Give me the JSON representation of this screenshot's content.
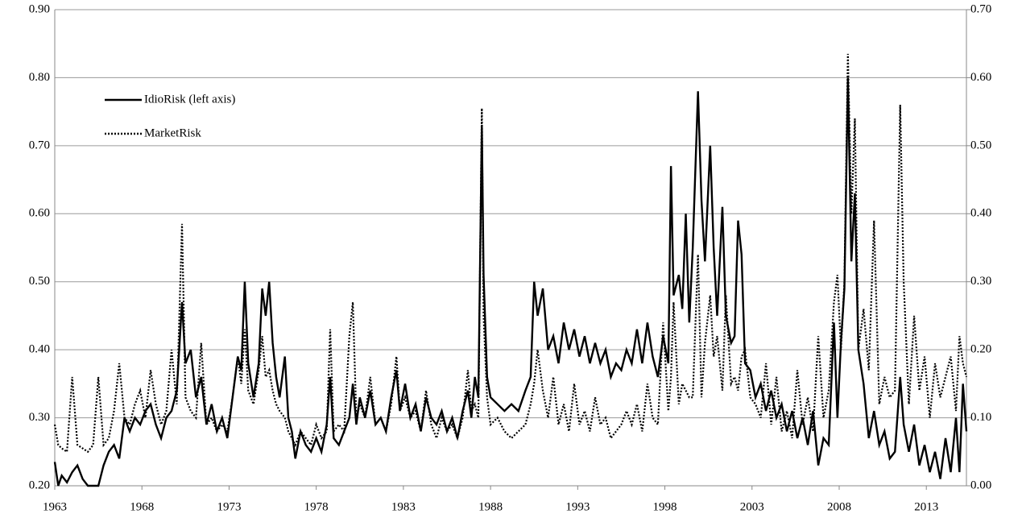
{
  "chart_data": {
    "type": "line",
    "x": [
      1963.0,
      1963.2,
      1963.4,
      1963.7,
      1964.0,
      1964.3,
      1964.6,
      1964.9,
      1965.2,
      1965.5,
      1965.8,
      1966.1,
      1966.4,
      1966.7,
      1967.0,
      1967.3,
      1967.6,
      1967.9,
      1968.2,
      1968.5,
      1968.8,
      1969.1,
      1969.4,
      1969.7,
      1970.0,
      1970.3,
      1970.5,
      1970.8,
      1971.1,
      1971.4,
      1971.7,
      1972.0,
      1972.3,
      1972.6,
      1972.9,
      1973.2,
      1973.5,
      1973.7,
      1973.9,
      1974.1,
      1974.4,
      1974.7,
      1974.9,
      1975.1,
      1975.3,
      1975.5,
      1975.7,
      1975.9,
      1976.2,
      1976.4,
      1976.6,
      1976.8,
      1977.1,
      1977.4,
      1977.7,
      1978.0,
      1978.3,
      1978.6,
      1978.8,
      1979.0,
      1979.3,
      1979.6,
      1979.9,
      1980.1,
      1980.3,
      1980.5,
      1980.8,
      1981.1,
      1981.4,
      1981.7,
      1982.0,
      1982.3,
      1982.6,
      1982.8,
      1983.1,
      1983.4,
      1983.7,
      1984.0,
      1984.3,
      1984.6,
      1984.9,
      1985.2,
      1985.5,
      1985.8,
      1986.1,
      1986.4,
      1986.7,
      1986.9,
      1987.1,
      1987.3,
      1987.5,
      1987.6,
      1987.8,
      1988.0,
      1988.4,
      1988.8,
      1989.2,
      1989.6,
      1990.0,
      1990.3,
      1990.5,
      1990.7,
      1991.0,
      1991.3,
      1991.6,
      1991.9,
      1992.2,
      1992.5,
      1992.8,
      1993.1,
      1993.4,
      1993.7,
      1994.0,
      1994.3,
      1994.6,
      1994.9,
      1995.2,
      1995.5,
      1995.8,
      1996.1,
      1996.4,
      1996.7,
      1997.0,
      1997.3,
      1997.6,
      1997.9,
      1998.2,
      1998.35,
      1998.5,
      1998.8,
      1999.0,
      1999.2,
      1999.4,
      1999.6,
      1999.9,
      2000.1,
      2000.3,
      2000.6,
      2000.8,
      2001.0,
      2001.3,
      2001.5,
      2001.8,
      2002.0,
      2002.2,
      2002.4,
      2002.6,
      2002.9,
      2003.2,
      2003.5,
      2003.8,
      2004.1,
      2004.4,
      2004.7,
      2005.0,
      2005.3,
      2005.6,
      2005.9,
      2006.2,
      2006.5,
      2006.8,
      2007.1,
      2007.4,
      2007.7,
      2007.9,
      2008.1,
      2008.3,
      2008.5,
      2008.7,
      2008.9,
      2009.1,
      2009.4,
      2009.7,
      2010.0,
      2010.3,
      2010.6,
      2010.9,
      2011.2,
      2011.5,
      2011.7,
      2012.0,
      2012.3,
      2012.6,
      2012.9,
      2013.2,
      2013.5,
      2013.8,
      2014.1,
      2014.4,
      2014.7,
      2014.9,
      2015.1,
      2015.3
    ],
    "series": [
      {
        "name": "IdioRisk (left axis)",
        "color": "#000000",
        "style": "solid",
        "values": [
          0.235,
          0.2,
          0.215,
          0.205,
          0.22,
          0.23,
          0.21,
          0.2,
          0.2,
          0.2,
          0.23,
          0.25,
          0.26,
          0.24,
          0.3,
          0.28,
          0.3,
          0.29,
          0.31,
          0.32,
          0.29,
          0.27,
          0.3,
          0.31,
          0.34,
          0.47,
          0.38,
          0.4,
          0.33,
          0.36,
          0.29,
          0.32,
          0.28,
          0.3,
          0.27,
          0.33,
          0.39,
          0.37,
          0.5,
          0.38,
          0.33,
          0.38,
          0.49,
          0.45,
          0.5,
          0.41,
          0.36,
          0.33,
          0.39,
          0.3,
          0.28,
          0.24,
          0.28,
          0.26,
          0.25,
          0.27,
          0.25,
          0.29,
          0.36,
          0.27,
          0.26,
          0.28,
          0.3,
          0.35,
          0.29,
          0.33,
          0.3,
          0.34,
          0.29,
          0.3,
          0.28,
          0.33,
          0.37,
          0.31,
          0.35,
          0.3,
          0.32,
          0.28,
          0.33,
          0.3,
          0.29,
          0.31,
          0.28,
          0.3,
          0.27,
          0.31,
          0.34,
          0.3,
          0.36,
          0.33,
          0.73,
          0.51,
          0.36,
          0.33,
          0.32,
          0.31,
          0.32,
          0.31,
          0.34,
          0.36,
          0.5,
          0.45,
          0.49,
          0.4,
          0.42,
          0.38,
          0.44,
          0.4,
          0.43,
          0.39,
          0.42,
          0.38,
          0.41,
          0.38,
          0.4,
          0.36,
          0.38,
          0.37,
          0.4,
          0.38,
          0.43,
          0.38,
          0.44,
          0.39,
          0.36,
          0.42,
          0.38,
          0.67,
          0.48,
          0.51,
          0.46,
          0.6,
          0.44,
          0.55,
          0.78,
          0.62,
          0.53,
          0.7,
          0.55,
          0.45,
          0.61,
          0.45,
          0.41,
          0.42,
          0.59,
          0.54,
          0.38,
          0.37,
          0.33,
          0.35,
          0.31,
          0.34,
          0.3,
          0.32,
          0.28,
          0.31,
          0.27,
          0.3,
          0.26,
          0.31,
          0.23,
          0.27,
          0.26,
          0.44,
          0.3,
          0.41,
          0.49,
          0.8,
          0.53,
          0.63,
          0.4,
          0.35,
          0.27,
          0.31,
          0.26,
          0.28,
          0.24,
          0.25,
          0.36,
          0.29,
          0.25,
          0.29,
          0.23,
          0.26,
          0.22,
          0.25,
          0.21,
          0.27,
          0.22,
          0.3,
          0.22,
          0.35,
          0.28
        ]
      },
      {
        "name": "MarketRisk",
        "color": "#000000",
        "style": "dotted",
        "axis": "y2",
        "values": [
          0.09,
          0.06,
          0.055,
          0.05,
          0.16,
          0.06,
          0.055,
          0.05,
          0.06,
          0.16,
          0.06,
          0.07,
          0.11,
          0.18,
          0.1,
          0.09,
          0.12,
          0.14,
          0.1,
          0.17,
          0.12,
          0.09,
          0.11,
          0.2,
          0.12,
          0.385,
          0.13,
          0.11,
          0.1,
          0.21,
          0.09,
          0.1,
          0.08,
          0.09,
          0.08,
          0.13,
          0.19,
          0.15,
          0.23,
          0.14,
          0.12,
          0.17,
          0.22,
          0.16,
          0.17,
          0.14,
          0.12,
          0.11,
          0.1,
          0.08,
          0.07,
          0.06,
          0.08,
          0.07,
          0.06,
          0.09,
          0.07,
          0.08,
          0.23,
          0.08,
          0.09,
          0.08,
          0.22,
          0.27,
          0.1,
          0.12,
          0.1,
          0.16,
          0.09,
          0.1,
          0.08,
          0.12,
          0.19,
          0.11,
          0.13,
          0.1,
          0.11,
          0.08,
          0.14,
          0.09,
          0.07,
          0.1,
          0.08,
          0.09,
          0.07,
          0.1,
          0.17,
          0.11,
          0.12,
          0.1,
          0.555,
          0.25,
          0.13,
          0.09,
          0.1,
          0.08,
          0.07,
          0.08,
          0.09,
          0.12,
          0.15,
          0.2,
          0.14,
          0.1,
          0.16,
          0.09,
          0.12,
          0.08,
          0.15,
          0.09,
          0.11,
          0.08,
          0.13,
          0.09,
          0.1,
          0.07,
          0.08,
          0.09,
          0.11,
          0.09,
          0.12,
          0.08,
          0.15,
          0.1,
          0.09,
          0.24,
          0.11,
          0.16,
          0.27,
          0.12,
          0.15,
          0.14,
          0.13,
          0.13,
          0.34,
          0.13,
          0.21,
          0.28,
          0.19,
          0.22,
          0.14,
          0.28,
          0.15,
          0.16,
          0.14,
          0.19,
          0.2,
          0.13,
          0.12,
          0.1,
          0.18,
          0.09,
          0.16,
          0.08,
          0.11,
          0.07,
          0.17,
          0.09,
          0.13,
          0.08,
          0.22,
          0.1,
          0.14,
          0.27,
          0.31,
          0.2,
          0.3,
          0.635,
          0.4,
          0.54,
          0.2,
          0.26,
          0.17,
          0.39,
          0.12,
          0.16,
          0.13,
          0.14,
          0.56,
          0.3,
          0.12,
          0.25,
          0.14,
          0.19,
          0.1,
          0.18,
          0.13,
          0.16,
          0.19,
          0.11,
          0.22,
          0.18,
          0.16
        ]
      }
    ],
    "xlim": [
      1963,
      2015.3
    ],
    "xticks": [
      1963,
      1968,
      1973,
      1978,
      1983,
      1988,
      1993,
      1998,
      2003,
      2008,
      2013
    ],
    "ylim": [
      0.2,
      0.9
    ],
    "yticks": [
      {
        "value": 0.2,
        "label": "0.20"
      },
      {
        "value": 0.3,
        "label": "0.30"
      },
      {
        "value": 0.4,
        "label": "0.40"
      },
      {
        "value": 0.5,
        "label": "0.50"
      },
      {
        "value": 0.6,
        "label": "0.60"
      },
      {
        "value": 0.7,
        "label": "0.70"
      },
      {
        "value": 0.8,
        "label": "0.80"
      },
      {
        "value": 0.9,
        "label": "0.90"
      }
    ],
    "y2lim": [
      0,
      0.7
    ],
    "y2ticks": [
      {
        "value": 0,
        "label": "0.00"
      },
      {
        "value": 0.1,
        "label": "0.10"
      },
      {
        "value": 0.2,
        "label": "0.20"
      },
      {
        "value": 0.3,
        "label": "0.30"
      },
      {
        "value": 0.4,
        "label": "0.40"
      },
      {
        "value": 0.5,
        "label": "0.50"
      },
      {
        "value": 0.6,
        "label": "0.60"
      },
      {
        "value": 0.7,
        "label": "0.70"
      }
    ],
    "grid": true,
    "legend": "upper-left"
  }
}
